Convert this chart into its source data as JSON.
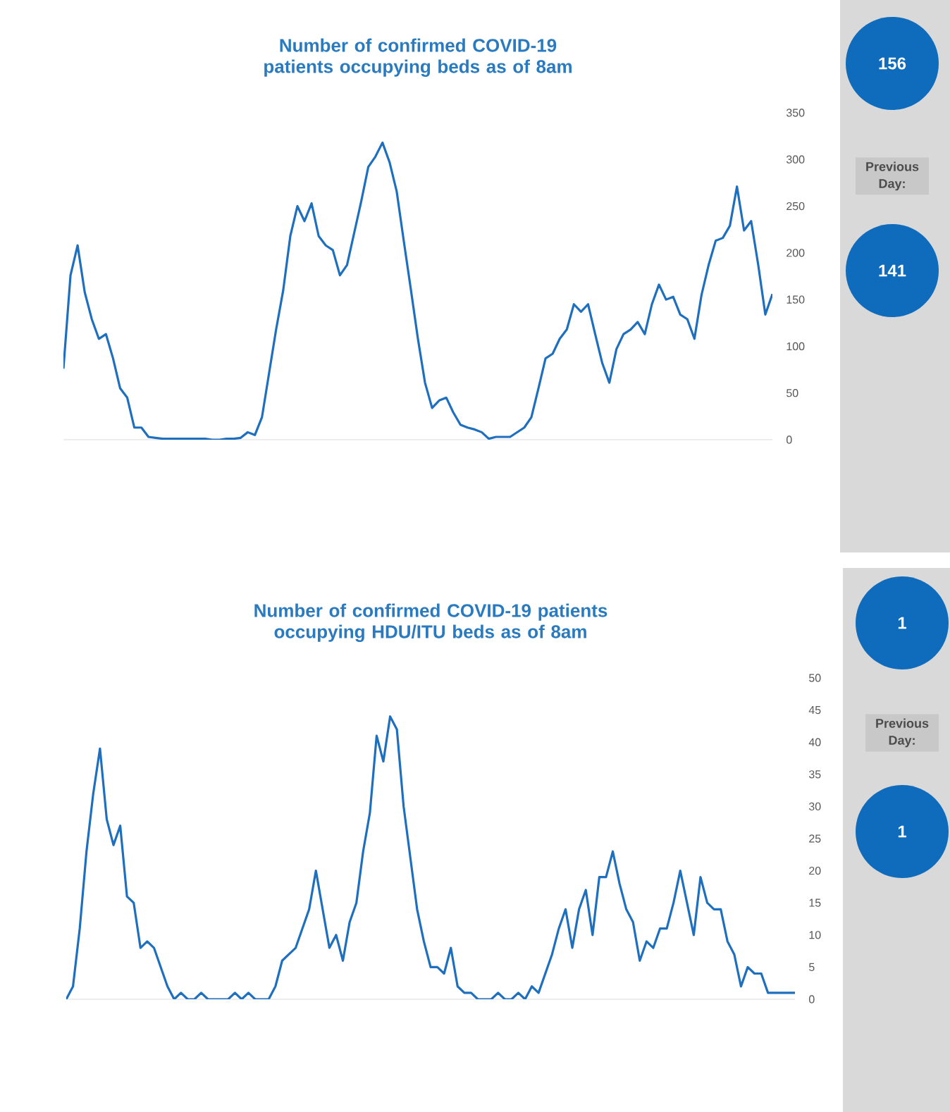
{
  "chart_data": [
    {
      "type": "line",
      "title": "Number of confirmed COVID-19 patients occupying beds as of 8am",
      "color": "#1f6fbf",
      "ylim": [
        0,
        350
      ],
      "yticks": [
        0,
        50,
        100,
        150,
        200,
        250,
        300,
        350
      ],
      "categories": [
        null,
        null,
        null,
        null,
        null,
        null,
        null,
        null,
        null,
        null,
        null,
        null,
        null,
        null,
        null,
        null,
        null,
        null,
        null,
        null,
        null,
        null,
        null,
        null,
        null,
        null,
        null,
        null,
        null,
        null,
        null,
        null,
        null,
        null,
        null,
        null,
        null,
        null,
        null,
        null,
        null,
        null,
        null,
        null,
        null,
        null,
        null,
        null,
        null,
        null,
        null,
        null,
        null,
        null,
        null,
        null,
        null,
        null,
        null,
        null,
        null,
        null,
        null,
        null,
        null,
        null,
        null,
        null,
        null,
        null,
        null,
        null,
        null,
        null,
        null,
        null,
        null,
        null,
        null,
        null,
        null,
        null,
        null,
        null,
        null,
        null,
        null,
        null,
        null,
        null,
        null,
        null,
        null,
        null,
        null,
        null,
        null,
        null,
        null,
        null,
        null
      ],
      "values": [
        76,
        176,
        208,
        158,
        129,
        108,
        113,
        87,
        55,
        45,
        13,
        13,
        3,
        2,
        1,
        1,
        1,
        1,
        1,
        1,
        1,
        0,
        0,
        1,
        1,
        2,
        8,
        5,
        24,
        71,
        118,
        160,
        218,
        250,
        234,
        253,
        218,
        208,
        203,
        176,
        187,
        221,
        255,
        292,
        303,
        318,
        297,
        266,
        213,
        161,
        108,
        61,
        34,
        42,
        45,
        29,
        16,
        13,
        11,
        8,
        1,
        3,
        3,
        3,
        8,
        13,
        24,
        55,
        87,
        92,
        108,
        118,
        145,
        137,
        145,
        113,
        82,
        61,
        97,
        113,
        118,
        126,
        113,
        145,
        166,
        150,
        153,
        134,
        129,
        108,
        155,
        187,
        213,
        216,
        229,
        271,
        224,
        234,
        187,
        134,
        156
      ]
    },
    {
      "type": "other",
      "annotations": [
        "156",
        "Previous Day:",
        "141"
      ]
    },
    {
      "type": "line",
      "title": "Number of confirmed COVID-19 patients occupying HDU/ITU beds as of 8am",
      "color": "#1f6fbf",
      "ylim": [
        0,
        50
      ],
      "yticks": [
        0,
        5,
        10,
        15,
        20,
        25,
        30,
        35,
        40,
        45,
        50
      ],
      "categories": [
        null,
        null,
        null,
        null,
        null,
        null,
        null,
        null,
        null,
        null,
        null,
        null,
        null,
        null,
        null,
        null,
        null,
        null,
        null,
        null,
        null,
        null,
        null,
        null,
        null,
        null,
        null,
        null,
        null,
        null,
        null,
        null,
        null,
        null,
        null,
        null,
        null,
        null,
        null,
        null,
        null,
        null,
        null,
        null,
        null,
        null,
        null,
        null,
        null,
        null,
        null,
        null,
        null,
        null,
        null,
        null,
        null,
        null,
        null,
        null,
        null,
        null,
        null,
        null,
        null,
        null,
        null,
        null,
        null,
        null,
        null,
        null,
        null,
        null,
        null,
        null,
        null,
        null,
        null,
        null,
        null,
        null,
        null,
        null,
        null,
        null,
        null,
        null,
        null,
        null,
        null,
        null,
        null,
        null,
        null,
        null,
        null,
        null,
        null,
        null,
        null,
        null,
        null,
        null,
        null,
        null,
        null,
        null,
        null
      ],
      "values": [
        0,
        2,
        11,
        23,
        32,
        39,
        28,
        24,
        27,
        16,
        15,
        8,
        9,
        8,
        5,
        2,
        0,
        1,
        0,
        0,
        1,
        0,
        0,
        0,
        0,
        1,
        0,
        1,
        0,
        0,
        0,
        2,
        6,
        7,
        8,
        11,
        14,
        20,
        14,
        8,
        10,
        6,
        12,
        15,
        23,
        29,
        41,
        37,
        44,
        42,
        30,
        22,
        14,
        9,
        5,
        5,
        4,
        8,
        2,
        1,
        1,
        0,
        0,
        0,
        1,
        0,
        0,
        1,
        0,
        2,
        1,
        4,
        7,
        11,
        14,
        8,
        14,
        17,
        10,
        19,
        19,
        23,
        18,
        14,
        12,
        6,
        9,
        8,
        11,
        11,
        15,
        20,
        15,
        10,
        19,
        15,
        14,
        14,
        9,
        7,
        2,
        5,
        4,
        4,
        1,
        1,
        1,
        1,
        1
      ]
    },
    {
      "type": "other",
      "annotations": [
        "1",
        "Previous Day:",
        "1"
      ]
    }
  ]
}
